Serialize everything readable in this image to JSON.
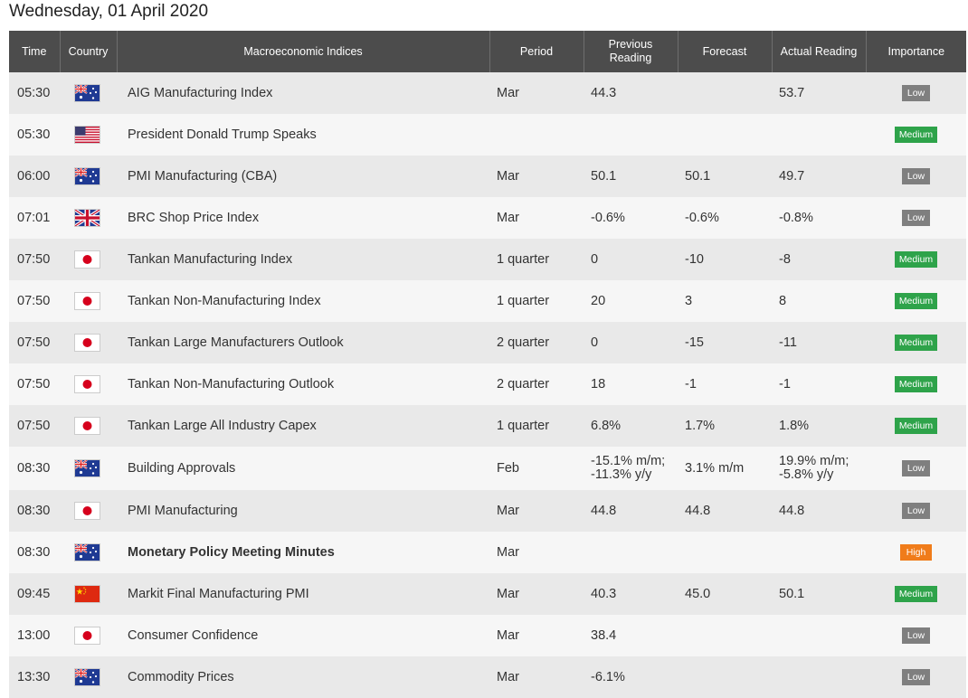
{
  "date_title": "Wednesday, 01 April 2020",
  "columns": {
    "time": "Time",
    "country": "Country",
    "indices": "Macroeconomic Indices",
    "period": "Period",
    "previous_line1": "Previous",
    "previous_line2": "Reading",
    "forecast": "Forecast",
    "actual": "Actual Reading",
    "importance": "Importance"
  },
  "importance_colors": {
    "Low": "#7f7f7f",
    "Medium": "#2ea34a",
    "High": "#f07c1a"
  },
  "value_colors": {
    "negative": "#d93a3a",
    "positive": "#3c9a2d"
  },
  "rows": [
    {
      "time": "05:30",
      "country": "australia-flag-icon",
      "index": "AIG Manufacturing Index",
      "period": "Mar",
      "previous": "44.3",
      "forecast": "",
      "actual": "53.7",
      "actual_tone": "",
      "importance": "Low",
      "bold": false
    },
    {
      "time": "05:30",
      "country": "usa-flag-icon",
      "index": "President Donald Trump Speaks",
      "period": "",
      "previous": "",
      "forecast": "",
      "actual": "",
      "actual_tone": "",
      "importance": "Medium",
      "bold": false
    },
    {
      "time": "06:00",
      "country": "australia-flag-icon",
      "index": "PMI Manufacturing (CBA)",
      "period": "Mar",
      "previous": "50.1",
      "forecast": "50.1",
      "actual": "49.7",
      "actual_tone": "negative",
      "importance": "Low",
      "bold": false
    },
    {
      "time": "07:01",
      "country": "uk-flag-icon",
      "index": "BRC Shop Price Index",
      "period": "Mar",
      "previous": "-0.6%",
      "forecast": "-0.6%",
      "actual": "-0.8%",
      "actual_tone": "negative",
      "importance": "Low",
      "bold": false
    },
    {
      "time": "07:50",
      "country": "japan-flag-icon",
      "index": "Tankan Manufacturing Index",
      "period": "1 quarter",
      "previous": "0",
      "forecast": "-10",
      "actual": "-8",
      "actual_tone": "",
      "importance": "Medium",
      "bold": false
    },
    {
      "time": "07:50",
      "country": "japan-flag-icon",
      "index": "Tankan Non-Manufacturing Index",
      "period": "1 quarter",
      "previous": "20",
      "forecast": "3",
      "actual": "8",
      "actual_tone": "positive",
      "importance": "Medium",
      "bold": false
    },
    {
      "time": "07:50",
      "country": "japan-flag-icon",
      "index": "Tankan Large Manufacturers Outlook",
      "period": "2 quarter",
      "previous": "0",
      "forecast": "-15",
      "actual": "-11",
      "actual_tone": "",
      "importance": "Medium",
      "bold": false
    },
    {
      "time": "07:50",
      "country": "japan-flag-icon",
      "index": "Tankan Non-Manufacturing Outlook",
      "period": "2 quarter",
      "previous": "18",
      "forecast": "-1",
      "actual": "-1",
      "actual_tone": "",
      "importance": "Medium",
      "bold": false
    },
    {
      "time": "07:50",
      "country": "japan-flag-icon",
      "index": "Tankan Large All Industry Capex",
      "period": "1 quarter",
      "previous": "6.8%",
      "forecast": "1.7%",
      "actual": "1.8%",
      "actual_tone": "positive",
      "importance": "Medium",
      "bold": false
    },
    {
      "time": "08:30",
      "country": "australia-flag-icon",
      "index": "Building Approvals",
      "period": "Feb",
      "previous": "-15.1% m/m; -11.3% y/y",
      "forecast": "3.1% m/m",
      "actual": "19.9% m/m; -5.8% y/y",
      "actual_tone": "positive",
      "importance": "Low",
      "bold": false
    },
    {
      "time": "08:30",
      "country": "japan-flag-icon",
      "index": "PMI Manufacturing",
      "period": "Mar",
      "previous": "44.8",
      "forecast": "44.8",
      "actual": "44.8",
      "actual_tone": "",
      "importance": "Low",
      "bold": false
    },
    {
      "time": "08:30",
      "country": "australia-flag-icon",
      "index": "Monetary Policy Meeting Minutes",
      "period": "Mar",
      "previous": "",
      "forecast": "",
      "actual": "",
      "actual_tone": "",
      "importance": "High",
      "bold": true
    },
    {
      "time": "09:45",
      "country": "china-flag-icon",
      "index": "Markit Final Manufacturing PMI",
      "period": "Mar",
      "previous": "40.3",
      "forecast": "45.0",
      "actual": "50.1",
      "actual_tone": "positive",
      "importance": "Medium",
      "bold": false
    },
    {
      "time": "13:00",
      "country": "japan-flag-icon",
      "index": "Consumer Confidence",
      "period": "Mar",
      "previous": "38.4",
      "forecast": "",
      "actual": "",
      "actual_tone": "",
      "importance": "Low",
      "bold": false
    },
    {
      "time": "13:30",
      "country": "australia-flag-icon",
      "index": "Commodity Prices",
      "period": "Mar",
      "previous": "-6.1%",
      "forecast": "",
      "actual": "",
      "actual_tone": "",
      "importance": "Low",
      "bold": false
    }
  ]
}
